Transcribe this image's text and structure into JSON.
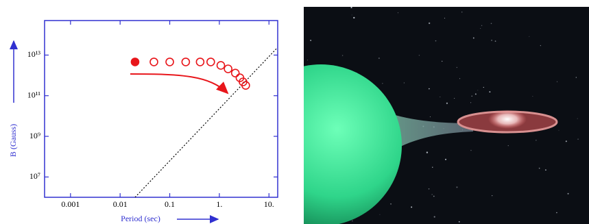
{
  "chart_data": {
    "type": "scatter",
    "xlabel": "Period (sec)",
    "ylabel": "B (Gauss)",
    "xscale": "log",
    "yscale": "log",
    "xlim": [
      0.0003,
      15
    ],
    "ylim": [
      1000000,
      500000000000000
    ],
    "xticks": [
      0.001,
      0.01,
      0.1,
      {
        "value": 1,
        "label": "1."
      },
      {
        "value": 10,
        "label": "10."
      }
    ],
    "yticks": [
      {
        "value": 10000000,
        "label": "10⁷"
      },
      {
        "value": 1000000000,
        "label": "10⁹"
      },
      {
        "value": 100000000000,
        "label": "10¹¹"
      },
      {
        "value": 10000000000000,
        "label": "10¹³"
      }
    ],
    "axis_color": "#3030d0",
    "series": [
      {
        "color": "#e8161b",
        "filled": true,
        "x": [
          0.02
        ],
        "values": [
          4600000000000
        ]
      },
      {
        "color": "#e8161b",
        "filled": false,
        "x": [
          0.048,
          0.1,
          0.21,
          0.41,
          0.67,
          1.07,
          1.5,
          2.1,
          2.6,
          3.0,
          3.4
        ],
        "values": [
          4600000000000,
          4600000000000,
          4600000000000,
          4600000000000,
          4600000000000,
          3100000000000,
          2100000000000,
          1300000000000,
          760000000000,
          480000000000,
          320000000000
        ]
      }
    ],
    "reference_line": {
      "x": [
        0.02,
        14.5
      ],
      "y": [
        1000000,
        22000000000000
      ],
      "style": "dotted",
      "color": "#000000"
    }
  }
}
